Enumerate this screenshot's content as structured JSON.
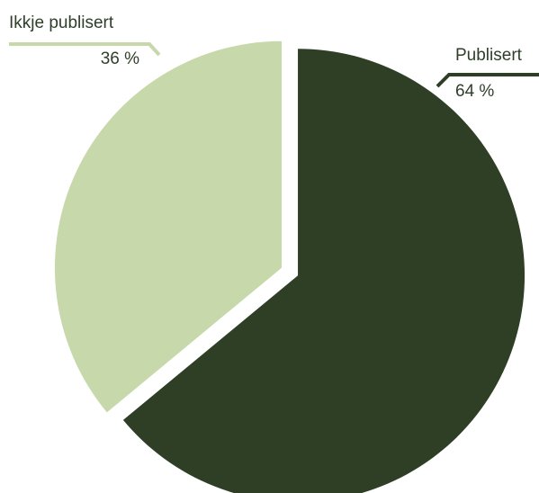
{
  "chart_data": {
    "type": "pie",
    "slices": [
      {
        "label": "Publisert",
        "value": 64,
        "value_label": "64 %",
        "color": "#2e3f26"
      },
      {
        "label": "Ikkje publisert",
        "value": 36,
        "value_label": "36 %",
        "color": "#c7d8ab"
      }
    ],
    "title": "",
    "legend": "none"
  }
}
